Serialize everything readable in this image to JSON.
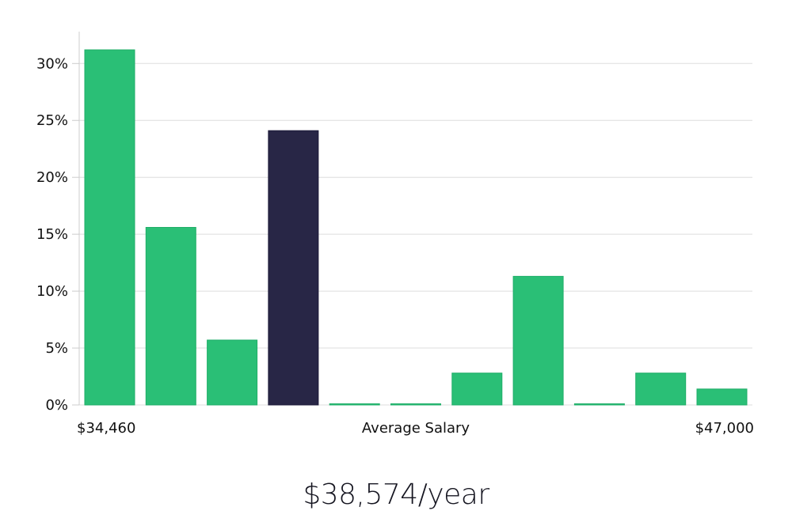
{
  "chart_data": {
    "type": "bar",
    "x_start_label": "$34,460",
    "x_center_label": "Average Salary",
    "x_end_label": "$47,000",
    "yticks": [
      "0%",
      "5%",
      "10%",
      "15%",
      "20%",
      "25%",
      "30%"
    ],
    "ylim": [
      0,
      32.8
    ],
    "values": [
      31.2,
      15.6,
      5.7,
      24.1,
      0.1,
      0.1,
      2.8,
      11.3,
      0.1,
      2.8,
      1.4
    ],
    "highlight_index": 3,
    "grid": true,
    "colors": {
      "bar": "#2abf76",
      "bar_edge": "#1fae68",
      "highlight": "#282646",
      "highlight_edge": "#1c1a38",
      "grid": "#dddddd",
      "axis": "#cccccc"
    }
  },
  "headline": "$38,574/year"
}
